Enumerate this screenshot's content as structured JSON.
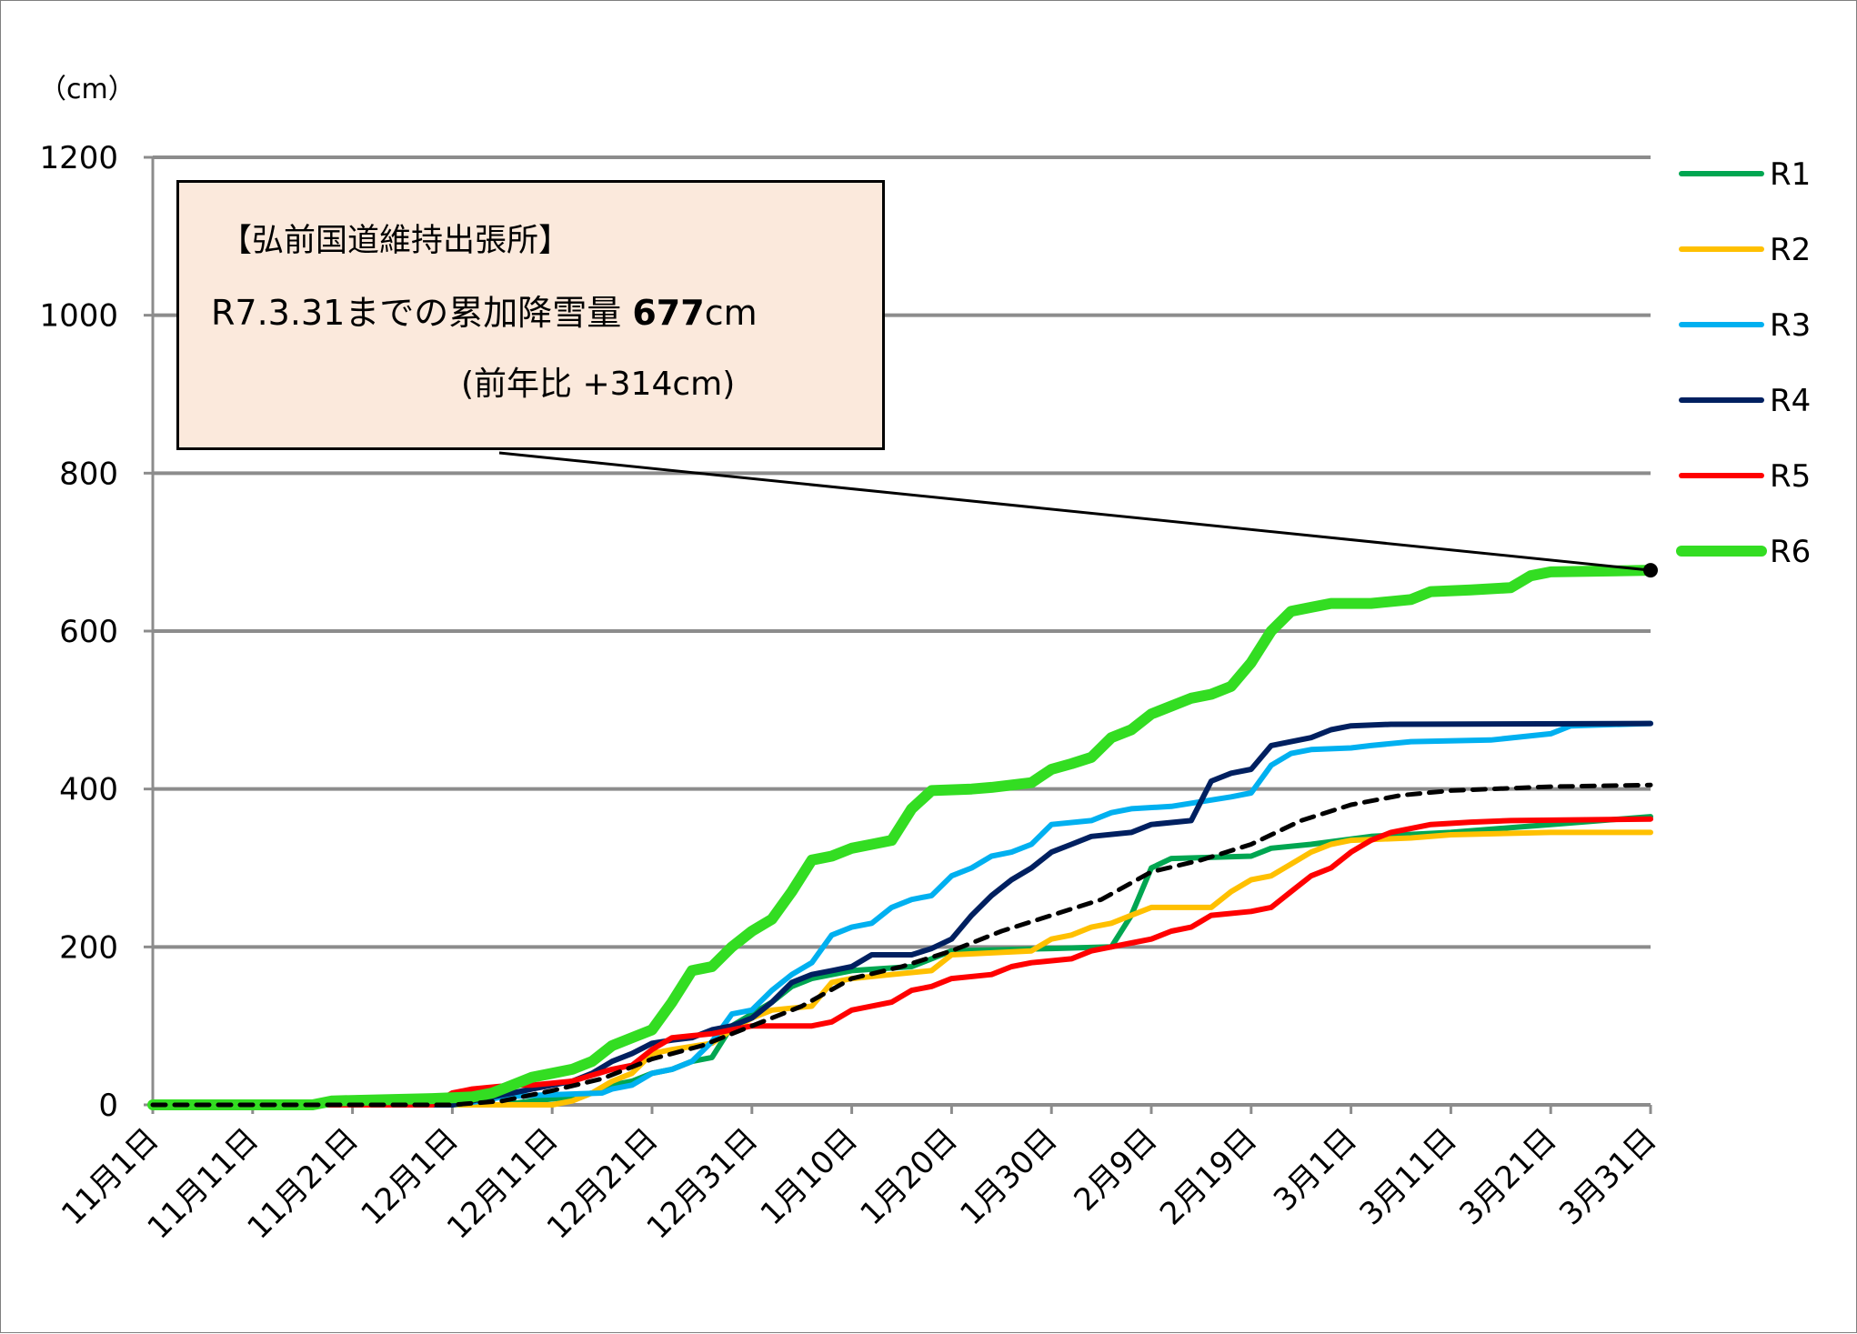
{
  "chart_data": {
    "type": "line",
    "unit_label": "（cm）",
    "ylim": [
      0,
      1200
    ],
    "yticks": [
      "0",
      "200",
      "400",
      "600",
      "800",
      "1000",
      "1200"
    ],
    "ytick_values": [
      0,
      200,
      400,
      600,
      800,
      1000,
      1200
    ],
    "xticks": [
      "11月1日",
      "11月11日",
      "11月21日",
      "12月1日",
      "12月11日",
      "12月21日",
      "12月31日",
      "1月10日",
      "1月20日",
      "1月30日",
      "2月9日",
      "2月19日",
      "3月1日",
      "3月11日",
      "3月21日",
      "3月31日"
    ],
    "xtick_days": [
      0,
      10,
      20,
      30,
      40,
      50,
      60,
      70,
      80,
      90,
      100,
      110,
      120,
      130,
      140,
      150
    ],
    "x_range_days": [
      0,
      150
    ],
    "grid": true,
    "legend_position": "right",
    "series": [
      {
        "name": "R1",
        "color": "#00a651",
        "width": 6,
        "dash": "",
        "points": [
          [
            0,
            0
          ],
          [
            35,
            0
          ],
          [
            38,
            5
          ],
          [
            42,
            10
          ],
          [
            44,
            15
          ],
          [
            46,
            25
          ],
          [
            48,
            30
          ],
          [
            50,
            40
          ],
          [
            52,
            45
          ],
          [
            54,
            55
          ],
          [
            56,
            60
          ],
          [
            58,
            100
          ],
          [
            60,
            115
          ],
          [
            62,
            130
          ],
          [
            64,
            150
          ],
          [
            66,
            160
          ],
          [
            70,
            170
          ],
          [
            76,
            175
          ],
          [
            80,
            195
          ],
          [
            90,
            198
          ],
          [
            96,
            200
          ],
          [
            98,
            240
          ],
          [
            100,
            300
          ],
          [
            102,
            312
          ],
          [
            110,
            315
          ],
          [
            112,
            325
          ],
          [
            116,
            330
          ],
          [
            122,
            340
          ],
          [
            130,
            345
          ],
          [
            140,
            355
          ],
          [
            150,
            365
          ]
        ]
      },
      {
        "name": "R2",
        "color": "#ffc000",
        "width": 6,
        "dash": "",
        "points": [
          [
            0,
            0
          ],
          [
            40,
            0
          ],
          [
            42,
            5
          ],
          [
            44,
            15
          ],
          [
            46,
            30
          ],
          [
            48,
            40
          ],
          [
            50,
            65
          ],
          [
            52,
            70
          ],
          [
            56,
            78
          ],
          [
            58,
            95
          ],
          [
            60,
            110
          ],
          [
            62,
            120
          ],
          [
            66,
            125
          ],
          [
            68,
            155
          ],
          [
            70,
            160
          ],
          [
            74,
            165
          ],
          [
            78,
            170
          ],
          [
            80,
            190
          ],
          [
            88,
            195
          ],
          [
            90,
            210
          ],
          [
            92,
            215
          ],
          [
            94,
            225
          ],
          [
            96,
            230
          ],
          [
            98,
            240
          ],
          [
            100,
            250
          ],
          [
            106,
            250
          ],
          [
            108,
            270
          ],
          [
            110,
            285
          ],
          [
            112,
            290
          ],
          [
            114,
            305
          ],
          [
            116,
            320
          ],
          [
            118,
            330
          ],
          [
            120,
            335
          ],
          [
            126,
            338
          ],
          [
            130,
            342
          ],
          [
            140,
            345
          ],
          [
            150,
            345
          ]
        ]
      },
      {
        "name": "R3",
        "color": "#00b0f0",
        "width": 6,
        "dash": "",
        "points": [
          [
            0,
            0
          ],
          [
            30,
            0
          ],
          [
            33,
            5
          ],
          [
            35,
            10
          ],
          [
            38,
            12
          ],
          [
            45,
            15
          ],
          [
            46,
            20
          ],
          [
            48,
            25
          ],
          [
            50,
            40
          ],
          [
            52,
            45
          ],
          [
            54,
            55
          ],
          [
            56,
            80
          ],
          [
            58,
            115
          ],
          [
            60,
            120
          ],
          [
            62,
            145
          ],
          [
            64,
            165
          ],
          [
            66,
            180
          ],
          [
            68,
            215
          ],
          [
            70,
            225
          ],
          [
            72,
            230
          ],
          [
            74,
            250
          ],
          [
            76,
            260
          ],
          [
            78,
            265
          ],
          [
            80,
            290
          ],
          [
            82,
            300
          ],
          [
            84,
            315
          ],
          [
            86,
            320
          ],
          [
            88,
            330
          ],
          [
            90,
            355
          ],
          [
            94,
            360
          ],
          [
            96,
            370
          ],
          [
            98,
            375
          ],
          [
            102,
            378
          ],
          [
            108,
            390
          ],
          [
            110,
            395
          ],
          [
            112,
            430
          ],
          [
            114,
            445
          ],
          [
            116,
            450
          ],
          [
            120,
            452
          ],
          [
            122,
            455
          ],
          [
            126,
            460
          ],
          [
            134,
            462
          ],
          [
            140,
            470
          ],
          [
            142,
            480
          ],
          [
            150,
            483
          ]
        ]
      },
      {
        "name": "R4",
        "color": "#002060",
        "width": 6,
        "dash": "",
        "points": [
          [
            0,
            0
          ],
          [
            30,
            0
          ],
          [
            32,
            5
          ],
          [
            34,
            10
          ],
          [
            36,
            15
          ],
          [
            38,
            20
          ],
          [
            40,
            25
          ],
          [
            42,
            30
          ],
          [
            44,
            40
          ],
          [
            46,
            55
          ],
          [
            48,
            65
          ],
          [
            50,
            78
          ],
          [
            52,
            82
          ],
          [
            54,
            85
          ],
          [
            56,
            95
          ],
          [
            58,
            100
          ],
          [
            60,
            110
          ],
          [
            62,
            130
          ],
          [
            64,
            155
          ],
          [
            66,
            165
          ],
          [
            68,
            170
          ],
          [
            70,
            175
          ],
          [
            72,
            190
          ],
          [
            76,
            190
          ],
          [
            78,
            198
          ],
          [
            80,
            210
          ],
          [
            82,
            240
          ],
          [
            84,
            265
          ],
          [
            86,
            285
          ],
          [
            88,
            300
          ],
          [
            90,
            320
          ],
          [
            92,
            330
          ],
          [
            94,
            340
          ],
          [
            98,
            345
          ],
          [
            100,
            355
          ],
          [
            104,
            360
          ],
          [
            106,
            410
          ],
          [
            108,
            420
          ],
          [
            110,
            425
          ],
          [
            112,
            455
          ],
          [
            114,
            460
          ],
          [
            116,
            465
          ],
          [
            118,
            475
          ],
          [
            120,
            480
          ],
          [
            124,
            482
          ],
          [
            150,
            483
          ]
        ]
      },
      {
        "name": "R5",
        "color": "#ff0000",
        "width": 6,
        "dash": "",
        "points": [
          [
            0,
            0
          ],
          [
            28,
            0
          ],
          [
            30,
            15
          ],
          [
            32,
            20
          ],
          [
            36,
            25
          ],
          [
            38,
            25
          ],
          [
            42,
            30
          ],
          [
            46,
            45
          ],
          [
            48,
            50
          ],
          [
            50,
            70
          ],
          [
            52,
            85
          ],
          [
            56,
            90
          ],
          [
            58,
            95
          ],
          [
            60,
            100
          ],
          [
            64,
            100
          ],
          [
            66,
            100
          ],
          [
            68,
            105
          ],
          [
            70,
            120
          ],
          [
            74,
            130
          ],
          [
            76,
            145
          ],
          [
            78,
            150
          ],
          [
            80,
            160
          ],
          [
            84,
            165
          ],
          [
            86,
            175
          ],
          [
            88,
            180
          ],
          [
            92,
            185
          ],
          [
            94,
            195
          ],
          [
            96,
            200
          ],
          [
            98,
            205
          ],
          [
            100,
            210
          ],
          [
            102,
            220
          ],
          [
            104,
            225
          ],
          [
            106,
            240
          ],
          [
            110,
            245
          ],
          [
            112,
            250
          ],
          [
            114,
            270
          ],
          [
            116,
            290
          ],
          [
            118,
            300
          ],
          [
            120,
            320
          ],
          [
            122,
            335
          ],
          [
            124,
            345
          ],
          [
            126,
            350
          ],
          [
            128,
            355
          ],
          [
            132,
            358
          ],
          [
            136,
            360
          ],
          [
            150,
            362
          ]
        ]
      },
      {
        "name": "R6",
        "color": "#33dd22",
        "width": 12,
        "dash": "",
        "points": [
          [
            0,
            0
          ],
          [
            16,
            0
          ],
          [
            18,
            5
          ],
          [
            28,
            8
          ],
          [
            32,
            10
          ],
          [
            34,
            15
          ],
          [
            36,
            25
          ],
          [
            38,
            35
          ],
          [
            40,
            40
          ],
          [
            42,
            45
          ],
          [
            44,
            55
          ],
          [
            46,
            75
          ],
          [
            48,
            85
          ],
          [
            50,
            95
          ],
          [
            52,
            130
          ],
          [
            54,
            170
          ],
          [
            56,
            175
          ],
          [
            58,
            200
          ],
          [
            60,
            220
          ],
          [
            62,
            235
          ],
          [
            64,
            270
          ],
          [
            66,
            310
          ],
          [
            68,
            315
          ],
          [
            70,
            325
          ],
          [
            72,
            330
          ],
          [
            74,
            335
          ],
          [
            76,
            375
          ],
          [
            78,
            398
          ],
          [
            82,
            400
          ],
          [
            84,
            402
          ],
          [
            86,
            405
          ],
          [
            88,
            408
          ],
          [
            90,
            425
          ],
          [
            92,
            432
          ],
          [
            94,
            440
          ],
          [
            96,
            465
          ],
          [
            98,
            475
          ],
          [
            100,
            495
          ],
          [
            102,
            505
          ],
          [
            104,
            515
          ],
          [
            106,
            520
          ],
          [
            108,
            530
          ],
          [
            110,
            560
          ],
          [
            112,
            600
          ],
          [
            114,
            625
          ],
          [
            116,
            630
          ],
          [
            118,
            635
          ],
          [
            122,
            635
          ],
          [
            126,
            640
          ],
          [
            128,
            650
          ],
          [
            132,
            652
          ],
          [
            136,
            655
          ],
          [
            138,
            670
          ],
          [
            140,
            675
          ],
          [
            150,
            677
          ]
        ]
      },
      {
        "name": "",
        "color": "#000000",
        "width": 5,
        "dash": "14,10",
        "points": [
          [
            0,
            0
          ],
          [
            30,
            0
          ],
          [
            35,
            5
          ],
          [
            40,
            18
          ],
          [
            45,
            33
          ],
          [
            50,
            58
          ],
          [
            55,
            75
          ],
          [
            60,
            100
          ],
          [
            65,
            125
          ],
          [
            70,
            160
          ],
          [
            75,
            175
          ],
          [
            80,
            195
          ],
          [
            85,
            220
          ],
          [
            90,
            240
          ],
          [
            95,
            260
          ],
          [
            100,
            295
          ],
          [
            105,
            310
          ],
          [
            110,
            330
          ],
          [
            115,
            360
          ],
          [
            120,
            380
          ],
          [
            125,
            392
          ],
          [
            130,
            398
          ],
          [
            140,
            403
          ],
          [
            150,
            405
          ]
        ]
      }
    ]
  },
  "annotation": {
    "line1": "【弘前国道維持出張所】",
    "line2_prefix": "R7.3.31までの累加降雪量 ",
    "line2_value": "677",
    "line2_unit": "cm",
    "line3": "(前年比 +314cm)",
    "leader_point_day": 150,
    "leader_point_value": 677
  }
}
